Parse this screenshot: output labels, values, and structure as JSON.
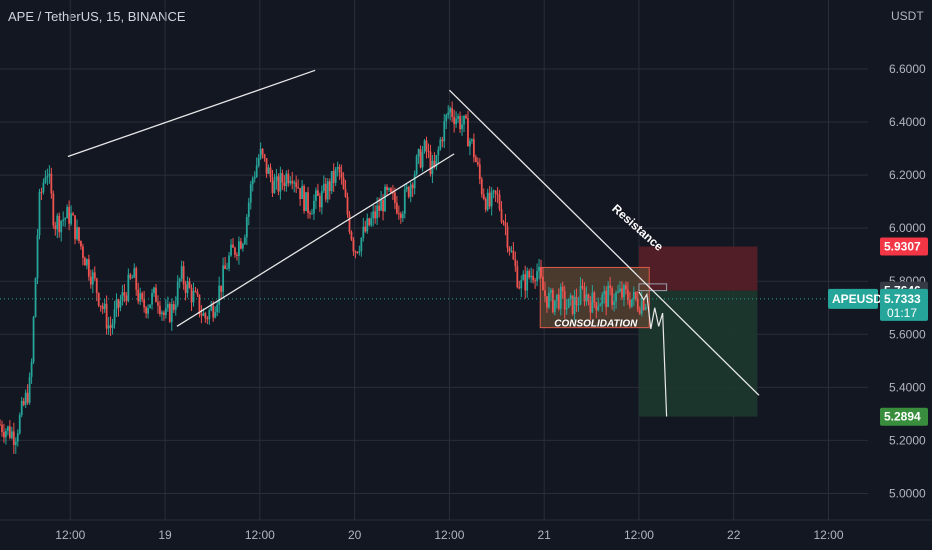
{
  "header": {
    "symbol": "APE / TetherUS, 15, BINANCE",
    "currency": "USDT"
  },
  "colors": {
    "background": "#131722",
    "grid": "#2a2e39",
    "up": "#26a69a",
    "down": "#ef5350",
    "text": "#b2b5be",
    "stop_zone": "#5d1f27",
    "target_zone": "#1d3a2e",
    "consolidation_fill": "#5e4531",
    "line": "#e8e8e8"
  },
  "chart_data": {
    "type": "candlestick",
    "y_axis": {
      "ylim": [
        4.9,
        6.86
      ],
      "ticks": [
        "6.6000",
        "6.4000",
        "6.2000",
        "6.0000",
        "5.8000",
        "5.6000",
        "5.4000",
        "5.2000",
        "5.0000"
      ],
      "tick_values": [
        6.6,
        6.4,
        6.2,
        6.0,
        5.8,
        5.6,
        5.4,
        5.2,
        5.0
      ]
    },
    "x_axis": {
      "ticks": [
        "12:00",
        "19",
        "12:00",
        "20",
        "12:00",
        "21",
        "12:00",
        "22",
        "12:00"
      ],
      "tick_hours": [
        12,
        24,
        36,
        48,
        60,
        72,
        84,
        96,
        108
      ],
      "range_hours": [
        3.1,
        113.0
      ]
    },
    "price_path_hours": [
      3.1,
      5,
      7,
      8,
      9,
      10,
      12,
      13,
      15,
      17,
      18,
      20,
      21,
      23,
      24,
      25,
      26,
      28,
      29,
      30,
      31,
      32,
      34,
      35,
      36,
      38,
      40,
      42,
      44,
      46,
      48,
      50,
      52,
      54,
      56,
      57,
      58,
      59,
      60,
      62,
      63,
      64,
      65,
      66,
      67,
      68,
      69,
      71,
      72,
      73,
      74,
      75,
      76,
      77,
      78,
      80,
      82,
      84,
      85
    ],
    "price_path_values": [
      5.26,
      5.22,
      5.42,
      6.08,
      6.24,
      6.02,
      6.05,
      5.96,
      5.8,
      5.62,
      5.7,
      5.82,
      5.7,
      5.75,
      5.66,
      5.7,
      5.82,
      5.72,
      5.66,
      5.7,
      5.78,
      5.88,
      5.98,
      6.18,
      6.28,
      6.15,
      6.22,
      6.08,
      6.12,
      6.22,
      5.92,
      6.02,
      6.12,
      6.08,
      6.25,
      6.3,
      6.2,
      6.35,
      6.45,
      6.38,
      6.3,
      6.16,
      6.08,
      6.12,
      6.02,
      5.88,
      5.78,
      5.85,
      5.75,
      5.72,
      5.74,
      5.7,
      5.72,
      5.76,
      5.72,
      5.74,
      5.75,
      5.72,
      5.733
    ],
    "trend_lines": [
      {
        "name": "upper-channel",
        "from": [
          11.7,
          6.27
        ],
        "to": [
          43.0,
          6.595
        ]
      },
      {
        "name": "lower-channel",
        "from": [
          25.5,
          5.63
        ],
        "to": [
          60.6,
          6.28
        ]
      },
      {
        "name": "resistance",
        "from": [
          60.0,
          6.52
        ],
        "to": [
          99.2,
          5.37
        ]
      }
    ],
    "projection": {
      "hours": [
        84.0,
        84.6,
        85.0,
        85.5,
        86.0,
        86.5,
        87.0,
        87.5
      ],
      "values": [
        5.76,
        5.73,
        5.75,
        5.62,
        5.7,
        5.63,
        5.68,
        5.29
      ]
    },
    "zones": {
      "consolidation": {
        "label": "CONSOLIDATION",
        "hours": [
          71.5,
          85.3
        ],
        "prices": [
          5.625,
          5.852
        ]
      },
      "stop": {
        "hours": [
          84.0,
          99.0
        ],
        "prices": [
          5.7646,
          5.9307
        ]
      },
      "target": {
        "hours": [
          84.0,
          99.0
        ],
        "prices": [
          5.2894,
          5.7646
        ]
      },
      "entry_box": {
        "hours": [
          84.0,
          87.5
        ],
        "prices": [
          5.7646,
          5.79
        ]
      }
    },
    "annotations": [
      {
        "text": "Resistance",
        "at": [
          80.5,
          6.07
        ],
        "angle_deg": 41.5
      }
    ],
    "price_tags": [
      {
        "label": "5.9307",
        "value": 5.9307,
        "color": "#f23645",
        "text_color": "#ffffff"
      },
      {
        "label": "5.7646",
        "value": 5.7646,
        "color": "#363a45",
        "text_color": "#ffffff"
      },
      {
        "label": "5.2894",
        "value": 5.2894,
        "color": "#388e3c",
        "text_color": "#ffffff"
      }
    ],
    "current_price": {
      "symbol": "APEUSDT",
      "price": "5.7333",
      "countdown": "01:17",
      "value": 5.7333,
      "color": "#26a69a"
    }
  }
}
